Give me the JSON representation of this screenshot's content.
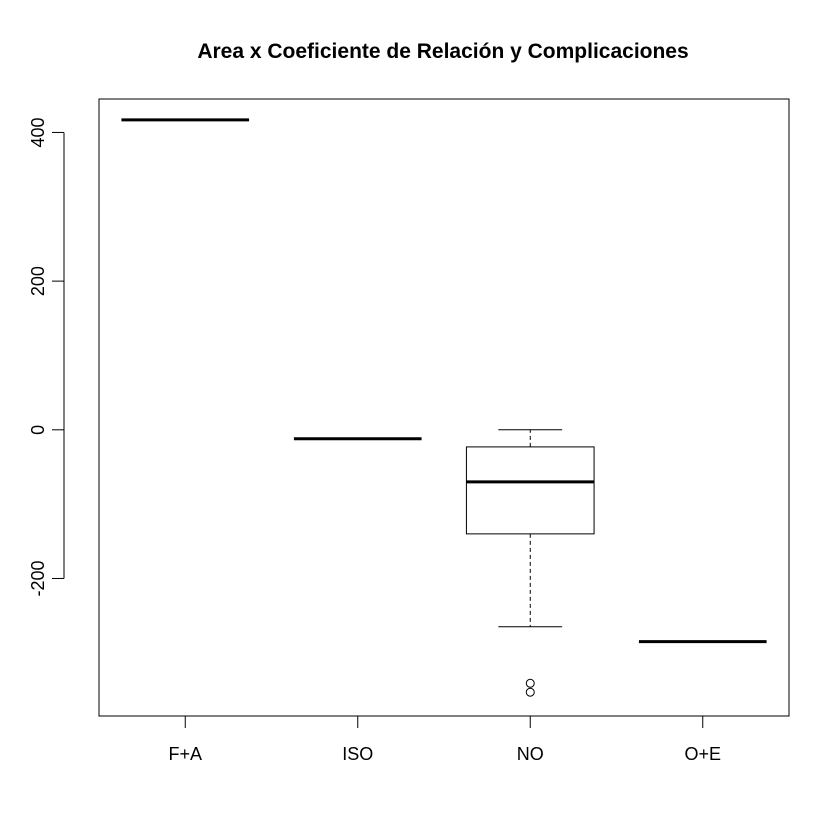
{
  "chart_data": {
    "type": "box",
    "title": "Area x Coeficiente de Relación y Complicaciones",
    "xlabel": "",
    "ylabel": "",
    "categories": [
      "F+A",
      "ISO",
      "NO",
      "O+E"
    ],
    "ylim": [
      -385,
      445
    ],
    "yticks": [
      -200,
      0,
      200,
      400
    ],
    "ytick_labels": [
      "-200",
      "0",
      "200",
      "400"
    ],
    "grid": false,
    "boxes": [
      {
        "category": "F+A",
        "min": 417,
        "q1": 417,
        "median": 417,
        "q3": 417,
        "max": 417,
        "outliers": []
      },
      {
        "category": "ISO",
        "min": -12,
        "q1": -12,
        "median": -12,
        "q3": -12,
        "max": -12,
        "outliers": []
      },
      {
        "category": "NO",
        "min": -265,
        "q1": -140,
        "median": -70,
        "q3": -23,
        "max": 0,
        "outliers": [
          -341,
          -353
        ]
      },
      {
        "category": "O+E",
        "min": -285,
        "q1": -285,
        "median": -285,
        "q3": -285,
        "max": -285,
        "outliers": []
      }
    ]
  }
}
